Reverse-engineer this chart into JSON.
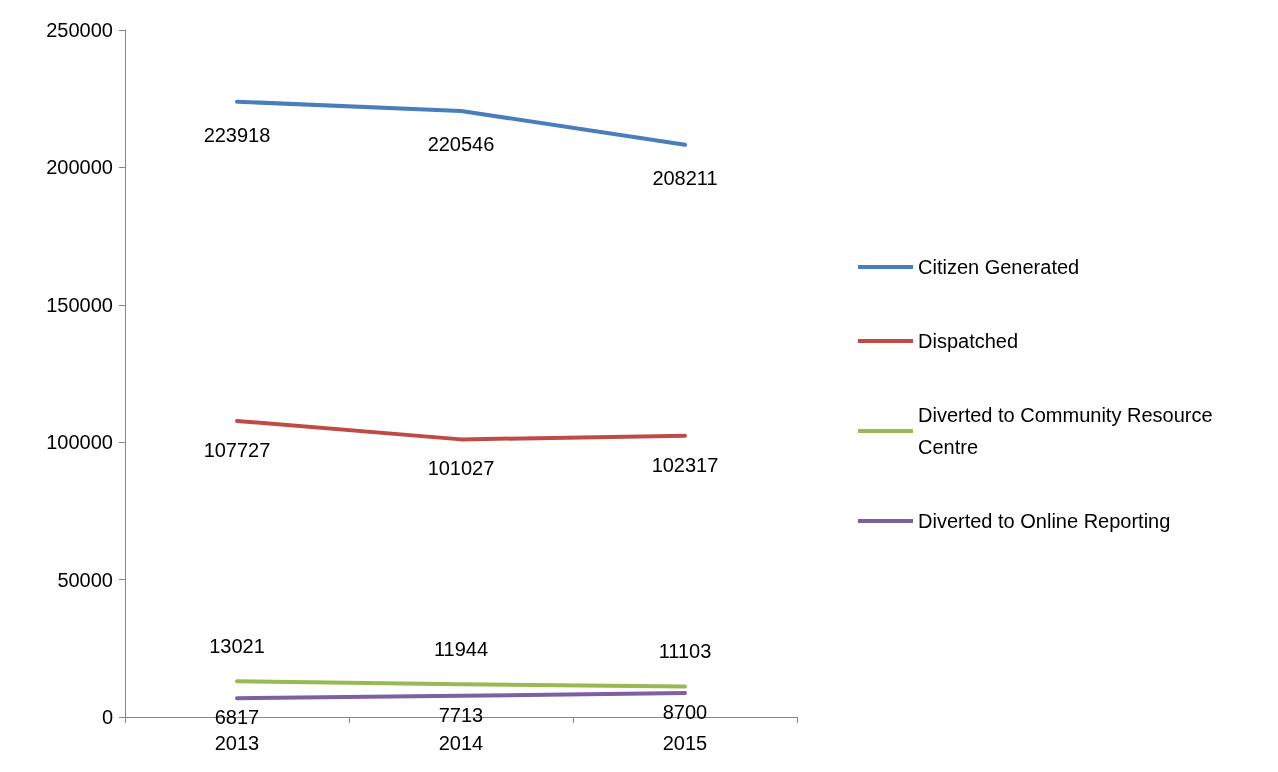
{
  "chart_data": {
    "type": "line",
    "categories": [
      "2013",
      "2014",
      "2015"
    ],
    "series": [
      {
        "name": "Citizen Generated",
        "color": "#4a7ebb",
        "values": [
          223918,
          220546,
          208211
        ]
      },
      {
        "name": "Dispatched",
        "color": "#be4b48",
        "values": [
          107727,
          101027,
          102317
        ]
      },
      {
        "name": "Diverted to Community Resource Centre",
        "color": "#98b954",
        "values": [
          13021,
          11944,
          11103
        ]
      },
      {
        "name": "Diverted to Online Reporting",
        "color": "#7d60a0",
        "values": [
          6817,
          7713,
          8700
        ]
      }
    ],
    "ylim": [
      0,
      250000
    ],
    "yticks": [
      0,
      50000,
      100000,
      150000,
      200000,
      250000
    ],
    "grid": false,
    "legend": "right",
    "data_labels": true,
    "marker": "none"
  }
}
